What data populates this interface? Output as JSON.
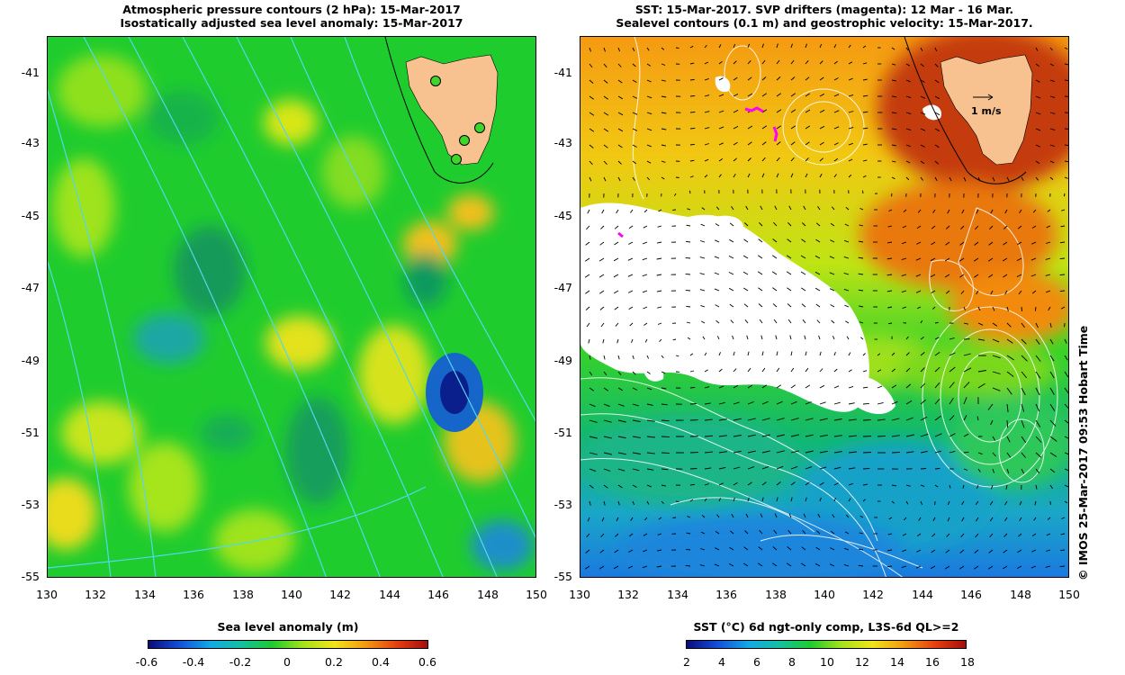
{
  "left_panel": {
    "title_line1": "Atmospheric pressure contours (2 hPa): 15-Mar-2017",
    "title_line2": "Isostatically adjusted sea level anomaly: 15-Mar-2017",
    "y_ticks": [
      "-41",
      "-43",
      "-45",
      "-47",
      "-49",
      "-51",
      "-53",
      "-55"
    ],
    "x_ticks": [
      "130",
      "132",
      "134",
      "136",
      "138",
      "140",
      "142",
      "144",
      "146",
      "148",
      "150"
    ],
    "colorbar": {
      "title": "Sea level anomaly (m)",
      "ticks": [
        "-0.6",
        "-0.4",
        "-0.2",
        "0",
        "0.2",
        "0.4",
        "0.6"
      ]
    },
    "land_color": "#f7c28f",
    "ocean_color": "#1fcc2e",
    "contour_color": "#55d6ee"
  },
  "right_panel": {
    "title_line1": "SST: 15-Mar-2017. SVP drifters (magenta): 12 Mar - 16 Mar.",
    "title_line2": "Sealevel contours (0.1 m) and geostrophic velocity: 15-Mar-2017.",
    "y_ticks": [
      "-41",
      "-43",
      "-45",
      "-47",
      "-49",
      "-51",
      "-53",
      "-55"
    ],
    "x_ticks": [
      "130",
      "132",
      "134",
      "136",
      "138",
      "140",
      "142",
      "144",
      "146",
      "148",
      "150"
    ],
    "velocity_key": "1 m/s",
    "colorbar": {
      "title": "SST (°C) 6d ngt-only comp, L3S-6d QL>=2",
      "ticks": [
        "2",
        "4",
        "6",
        "8",
        "10",
        "12",
        "14",
        "16",
        "18"
      ]
    },
    "drifter_color": "#ff00ff",
    "contour_color": "#ffffff"
  },
  "credit": "© IMOS 25-Mar-2017 09:53 Hobart Time",
  "map_extent": {
    "lon": [
      130,
      150
    ],
    "lat": [
      -55,
      -40
    ]
  }
}
